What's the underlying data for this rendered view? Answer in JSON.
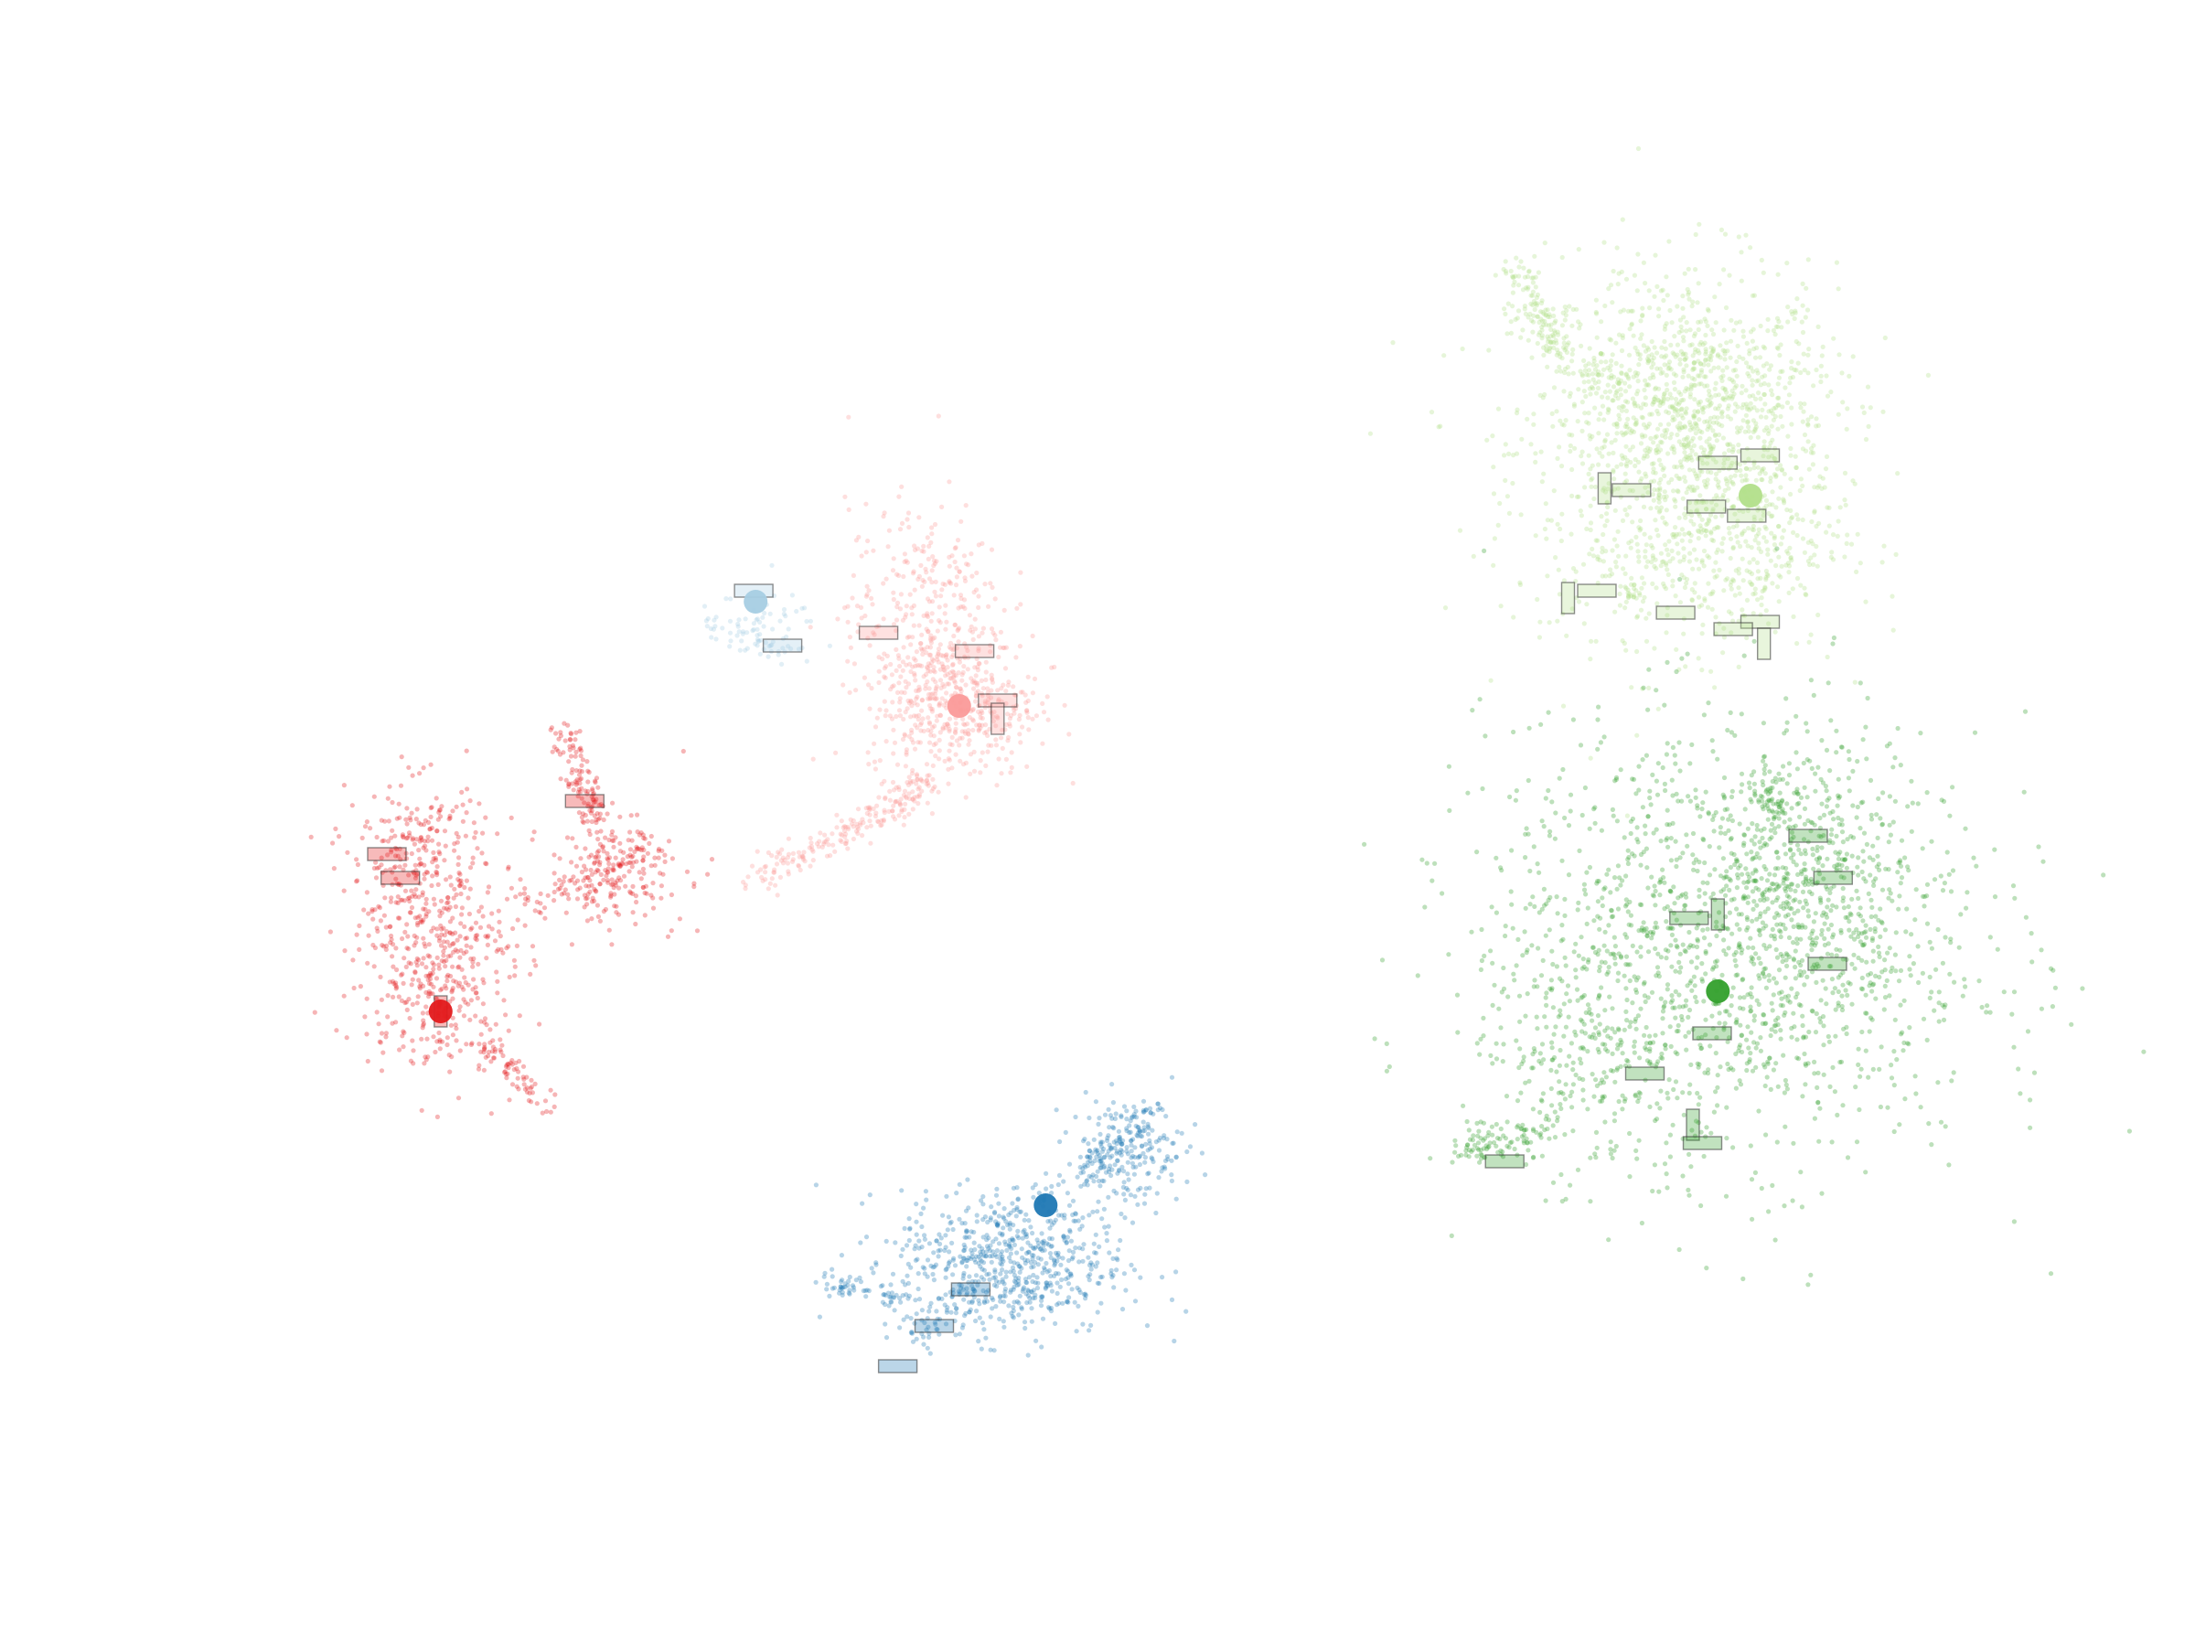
{
  "chart_data": {
    "type": "scatter",
    "title": "",
    "xlabel": "",
    "ylabel": "",
    "xlim": [
      0,
      100
    ],
    "ylim": [
      0,
      75
    ],
    "grid": false,
    "axes_visible": false,
    "legend": "none",
    "series": [
      {
        "key": "light-green",
        "color": "#b2df8a",
        "center": [
          84,
          55.4
        ],
        "clusters": [
          {
            "x": 80,
            "y": 58,
            "sx": 4.2,
            "sy": 5.0,
            "n": 1100
          },
          {
            "x": 82,
            "y": 61,
            "sx": 3.0,
            "sy": 2.5,
            "n": 350
          },
          {
            "x": 83,
            "y": 53,
            "sx": 3.0,
            "sy": 3.0,
            "n": 300
          }
        ],
        "tails": [
          {
            "from": [
              72.6,
              65.8
            ],
            "to": [
              77.5,
              60.0
            ],
            "n": 120,
            "spread": 0.7
          },
          {
            "from": [
              71.5,
              68.0
            ],
            "to": [
              73.5,
              64.5
            ],
            "n": 70,
            "spread": 0.5
          },
          {
            "from": [
              78.0,
              51.0
            ],
            "to": [
              77.8,
              49.0
            ],
            "n": 30,
            "spread": 0.4
          }
        ],
        "patches": [
          [
            84.5,
            57.6
          ],
          [
            82.3,
            57.2
          ],
          [
            77.8,
            55.7
          ],
          [
            76.4,
            55.8
          ],
          [
            81.7,
            54.8
          ],
          [
            83.8,
            54.3
          ],
          [
            76.0,
            50.2
          ],
          [
            74.5,
            49.8
          ],
          [
            80.1,
            49.0
          ],
          [
            84.5,
            48.5
          ],
          [
            83.1,
            48.1
          ],
          [
            84.7,
            47.3
          ]
        ]
      },
      {
        "key": "dark-green",
        "color": "#33a02c",
        "center": [
          82.3,
          28.3
        ],
        "clusters": [
          {
            "x": 83,
            "y": 31,
            "sx": 6.5,
            "sy": 6.0,
            "n": 1500
          },
          {
            "x": 87,
            "y": 35,
            "sx": 2.5,
            "sy": 3.0,
            "n": 300
          },
          {
            "x": 76,
            "y": 25,
            "sx": 3.0,
            "sy": 3.5,
            "n": 250
          }
        ],
        "tails": [
          {
            "from": [
              69.0,
              19.5
            ],
            "to": [
              73.0,
              20.5
            ],
            "n": 90,
            "spread": 0.5
          },
          {
            "from": [
              84.5,
              40.0
            ],
            "to": [
              85.5,
              38.0
            ],
            "n": 40,
            "spread": 0.5
          }
        ],
        "patches": [
          [
            87.0,
            36.8
          ],
          [
            88.3,
            34.5
          ],
          [
            80.8,
            32.3
          ],
          [
            82.3,
            32.5
          ],
          [
            88.0,
            29.8
          ],
          [
            82.0,
            26.0
          ],
          [
            78.5,
            23.8
          ],
          [
            81.0,
            21.0
          ],
          [
            81.5,
            20.0
          ],
          [
            71.2,
            19.0
          ]
        ]
      },
      {
        "key": "light-red",
        "color": "#fb9a99",
        "center": [
          42.8,
          43.9
        ],
        "clusters": [
          {
            "x": 42.5,
            "y": 44,
            "sx": 2.2,
            "sy": 2.0,
            "n": 450
          },
          {
            "x": 41,
            "y": 49,
            "sx": 2.0,
            "sy": 3.0,
            "n": 300
          }
        ],
        "tails": [
          {
            "from": [
              41.5,
              40.0
            ],
            "to": [
              37.0,
              37.0
            ],
            "n": 120,
            "spread": 0.5
          },
          {
            "from": [
              37.0,
              37.0
            ],
            "to": [
              32.0,
              34.5
            ],
            "n": 90,
            "spread": 0.5
          }
        ],
        "patches": [
          [
            38.6,
            47.9
          ],
          [
            43.6,
            46.9
          ],
          [
            44.8,
            44.2
          ],
          [
            44.8,
            43.2
          ]
        ]
      },
      {
        "key": "dark-red",
        "color": "#e31a1c",
        "center": [
          15.8,
          27.2
        ],
        "clusters": [
          {
            "x": 15.5,
            "y": 30,
            "sx": 2.0,
            "sy": 3.0,
            "n": 450
          },
          {
            "x": 14.5,
            "y": 36,
            "sx": 1.8,
            "sy": 2.0,
            "n": 200
          },
          {
            "x": 25.0,
            "y": 35,
            "sx": 1.8,
            "sy": 1.5,
            "n": 180
          }
        ],
        "tails": [
          {
            "from": [
              22.0,
              42.5
            ],
            "to": [
              24.0,
              37.5
            ],
            "n": 110,
            "spread": 0.4
          },
          {
            "from": [
              18.0,
              25.5
            ],
            "to": [
              21.5,
              22.0
            ],
            "n": 70,
            "spread": 0.4
          },
          {
            "from": [
              20.5,
              33.0
            ],
            "to": [
              26.5,
              36.0
            ],
            "n": 80,
            "spread": 0.7
          }
        ],
        "patches": [
          [
            23.3,
            38.7
          ],
          [
            13.0,
            35.8
          ],
          [
            13.7,
            34.5
          ],
          [
            15.8,
            27.2
          ]
        ]
      },
      {
        "key": "dark-blue",
        "color": "#1f78b4",
        "center": [
          47.3,
          16.6
        ],
        "clusters": [
          {
            "x": 45.5,
            "y": 13.5,
            "sx": 3.0,
            "sy": 2.0,
            "n": 650
          },
          {
            "x": 51.5,
            "y": 19.5,
            "sx": 1.5,
            "sy": 1.5,
            "n": 200
          }
        ],
        "tails": [
          {
            "from": [
              35.5,
              12.5
            ],
            "to": [
              39.5,
              11.5
            ],
            "n": 60,
            "spread": 0.3
          },
          {
            "from": [
              40.0,
              9.0
            ],
            "to": [
              44.0,
              12.0
            ],
            "n": 60,
            "spread": 0.5
          },
          {
            "from": [
              49.0,
              18.0
            ],
            "to": [
              53.0,
              22.0
            ],
            "n": 80,
            "spread": 0.4
          }
        ],
        "patches": [
          [
            43.4,
            12.0
          ],
          [
            41.5,
            10.0
          ],
          [
            39.6,
            7.8
          ]
        ]
      },
      {
        "key": "light-blue",
        "color": "#a6cee3",
        "center": [
          32.2,
          49.6
        ],
        "clusters": [
          {
            "x": 32.5,
            "y": 48.0,
            "sx": 1.5,
            "sy": 1.0,
            "n": 60
          }
        ],
        "tails": [
          {
            "from": [
              30.0,
              48.5
            ],
            "to": [
              33.0,
              47.0
            ],
            "n": 30,
            "spread": 0.4
          }
        ],
        "patches": [
          [
            32.1,
            50.2
          ],
          [
            33.6,
            47.2
          ]
        ]
      }
    ]
  }
}
